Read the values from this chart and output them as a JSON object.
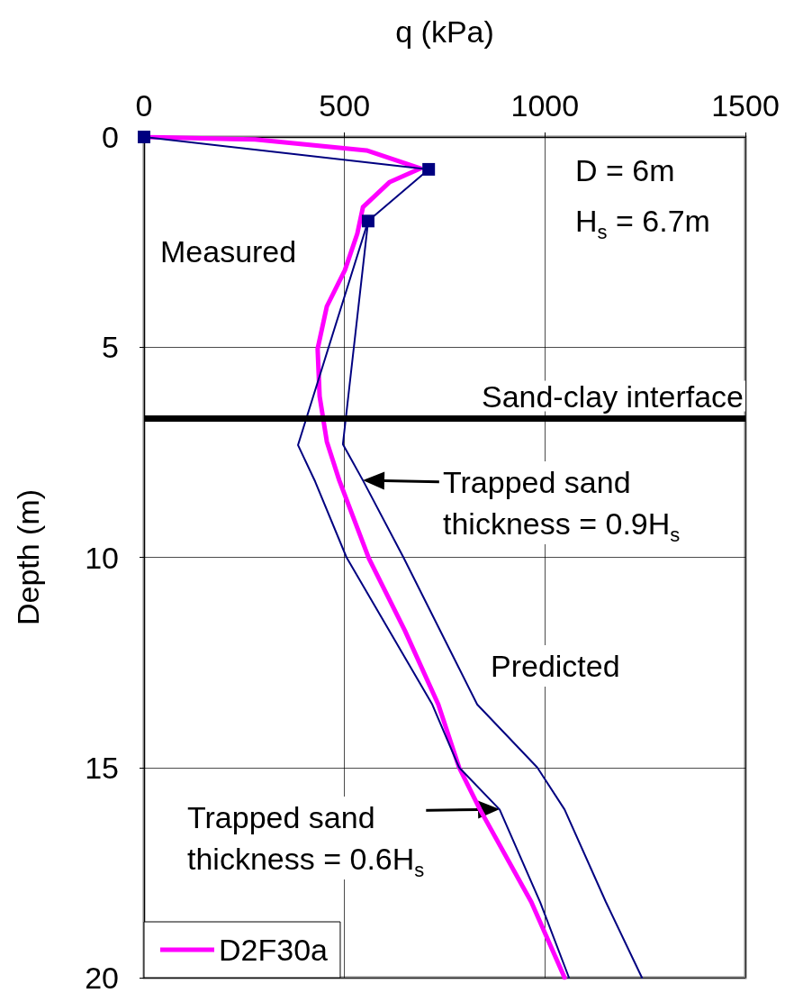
{
  "chart_data": {
    "type": "line",
    "xlabel": "q (kPa)",
    "ylabel": "Depth (m)",
    "xlim": [
      0,
      1500
    ],
    "xticks": [
      0,
      500,
      1000,
      1500
    ],
    "ylim": [
      20,
      0
    ],
    "yticks": [
      0,
      5,
      10,
      15,
      20
    ],
    "grid": true,
    "legend": "bottom left",
    "series": [
      {
        "name": "D2F30a",
        "color": "#ff00ff",
        "marker": "none",
        "x": [
          0,
          277,
          555,
          689,
          613,
          546,
          532,
          501,
          456,
          433,
          438,
          456,
          487,
          561,
          651,
          734,
          786,
          838,
          966,
          1049
        ],
        "values": [
          0,
          0.06,
          0.32,
          0.75,
          1.07,
          1.67,
          2.3,
          3.17,
          4.03,
          5.04,
          6.17,
          7.25,
          8.17,
          10.03,
          11.75,
          13.5,
          15,
          16,
          18.2,
          20
        ]
      },
      {
        "color": "#000080",
        "marker": "square",
        "x": [
          0,
          710,
          559
        ],
        "values": [
          0,
          0.77,
          2.0
        ]
      },
      {
        "color": "#000080",
        "marker": "none",
        "x": [
          559,
          384,
          427,
          505,
          719,
          786,
          887,
          988,
          1060
        ],
        "values": [
          2.0,
          7.33,
          8.2,
          10,
          13.5,
          15,
          16,
          18.2,
          20
        ]
      },
      {
        "color": "#000080",
        "marker": "none",
        "x": [
          559,
          496,
          546,
          647,
          831,
          981,
          1049,
          1152,
          1242
        ],
        "values": [
          2.0,
          7.31,
          8.17,
          10,
          13.5,
          15,
          16,
          18.2,
          20
        ]
      }
    ],
    "ref_lines": [
      {
        "axis": "y",
        "value": 6.7,
        "label": "Sand-clay interface",
        "color": "#000000"
      }
    ],
    "annotations": [
      "Measured",
      "Predicted",
      "D = 6m",
      "H$_{s}$ = 6.7m",
      {
        "text": "Trapped sand\nthickness = 0.9H$_{s}$",
        "x": 546,
        "y": 8.17
      },
      {
        "text": "Trapped sand\nthickness = 0.6H$_{s}$",
        "x": 887,
        "y": 16.0
      }
    ]
  }
}
